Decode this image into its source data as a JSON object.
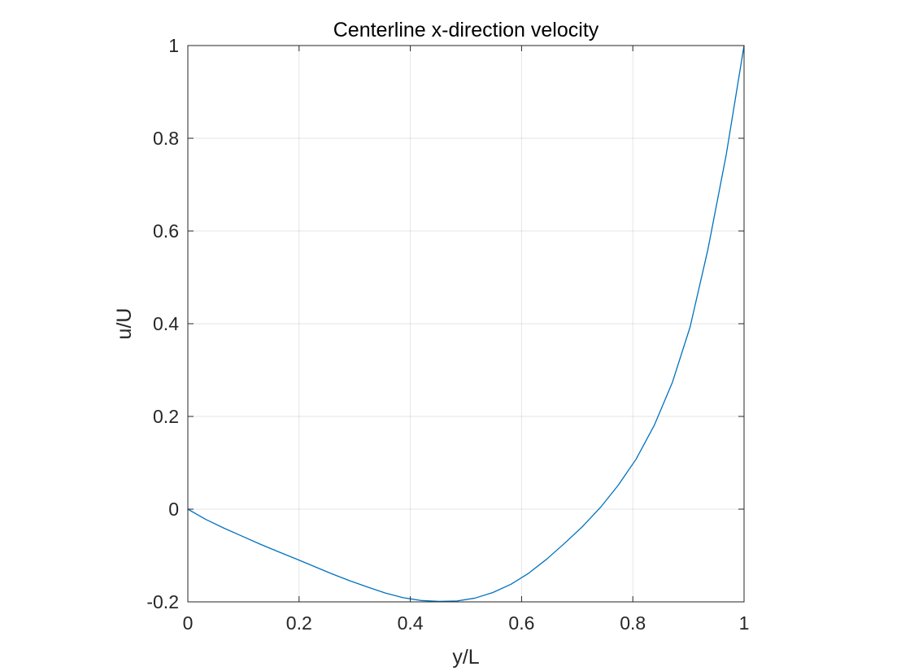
{
  "chart_data": {
    "type": "line",
    "title": "Centerline x-direction velocity",
    "xlabel": "y/L",
    "ylabel": "u/U",
    "xlim": [
      0,
      1
    ],
    "ylim": [
      -0.2,
      1
    ],
    "grid": true,
    "box": true,
    "x_ticks": [
      0,
      0.2,
      0.4,
      0.6,
      0.8,
      1
    ],
    "x_tick_labels": [
      "0",
      "0.2",
      "0.4",
      "0.6",
      "0.8",
      "1"
    ],
    "y_ticks": [
      -0.2,
      0,
      0.2,
      0.4,
      0.6,
      0.8,
      1
    ],
    "y_tick_labels": [
      "-0.2",
      "0",
      "0.2",
      "0.4",
      "0.6",
      "0.8",
      "1"
    ],
    "series": [
      {
        "color": "#0072BD",
        "x": [
          0,
          0.032,
          0.065,
          0.097,
          0.129,
          0.161,
          0.194,
          0.226,
          0.258,
          0.29,
          0.323,
          0.355,
          0.387,
          0.419,
          0.452,
          0.484,
          0.516,
          0.548,
          0.581,
          0.613,
          0.645,
          0.677,
          0.71,
          0.742,
          0.774,
          0.806,
          0.839,
          0.871,
          0.903,
          0.935,
          0.968,
          1
        ],
        "y": [
          0,
          -0.022,
          -0.041,
          -0.058,
          -0.075,
          -0.091,
          -0.107,
          -0.123,
          -0.139,
          -0.154,
          -0.168,
          -0.181,
          -0.191,
          -0.197,
          -0.199,
          -0.198,
          -0.192,
          -0.18,
          -0.162,
          -0.138,
          -0.108,
          -0.074,
          -0.037,
          0.004,
          0.052,
          0.108,
          0.182,
          0.273,
          0.393,
          0.56,
          0.765,
          1
        ]
      }
    ]
  }
}
